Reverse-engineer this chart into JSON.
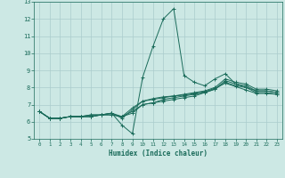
{
  "title": "",
  "xlabel": "Humidex (Indice chaleur)",
  "bg_color": "#cce8e4",
  "grid_color": "#aacccc",
  "line_color": "#1a6b5a",
  "xlim": [
    -0.5,
    23.5
  ],
  "ylim": [
    5,
    13
  ],
  "xticks": [
    0,
    1,
    2,
    3,
    4,
    5,
    6,
    7,
    8,
    9,
    10,
    11,
    12,
    13,
    14,
    15,
    16,
    17,
    18,
    19,
    20,
    21,
    22,
    23
  ],
  "yticks": [
    5,
    6,
    7,
    8,
    9,
    10,
    11,
    12,
    13
  ],
  "lines": [
    {
      "x": [
        0,
        1,
        2,
        3,
        4,
        5,
        6,
        7,
        8,
        9,
        10,
        11,
        12,
        13,
        14,
        15,
        16,
        17,
        18,
        19,
        20,
        21,
        22,
        23
      ],
      "y": [
        6.6,
        6.2,
        6.2,
        6.3,
        6.3,
        6.4,
        6.4,
        6.5,
        5.8,
        5.3,
        8.6,
        10.4,
        12.0,
        12.6,
        8.7,
        8.3,
        8.1,
        8.5,
        8.8,
        8.2,
        8.0,
        7.8,
        7.8,
        7.7
      ]
    },
    {
      "x": [
        0,
        1,
        2,
        3,
        4,
        5,
        6,
        7,
        8,
        9,
        10,
        11,
        12,
        13,
        14,
        15,
        16,
        17,
        18,
        19,
        20,
        21,
        22,
        23
      ],
      "y": [
        6.6,
        6.2,
        6.2,
        6.3,
        6.3,
        6.3,
        6.4,
        6.5,
        6.3,
        6.8,
        7.2,
        7.35,
        7.45,
        7.5,
        7.55,
        7.65,
        7.75,
        7.95,
        8.25,
        8.05,
        7.85,
        7.65,
        7.65,
        7.6
      ]
    },
    {
      "x": [
        0,
        1,
        2,
        3,
        4,
        5,
        6,
        7,
        8,
        9,
        10,
        11,
        12,
        13,
        14,
        15,
        16,
        17,
        18,
        19,
        20,
        21,
        22,
        23
      ],
      "y": [
        6.6,
        6.2,
        6.2,
        6.3,
        6.3,
        6.3,
        6.4,
        6.4,
        6.3,
        6.6,
        7.0,
        7.1,
        7.2,
        7.3,
        7.4,
        7.5,
        7.7,
        7.9,
        8.3,
        8.1,
        8.0,
        7.7,
        7.7,
        7.6
      ]
    },
    {
      "x": [
        0,
        1,
        2,
        3,
        4,
        5,
        6,
        7,
        8,
        9,
        10,
        11,
        12,
        13,
        14,
        15,
        16,
        17,
        18,
        19,
        20,
        21,
        22,
        23
      ],
      "y": [
        6.6,
        6.2,
        6.2,
        6.3,
        6.3,
        6.3,
        6.4,
        6.4,
        6.3,
        6.5,
        7.0,
        7.1,
        7.3,
        7.4,
        7.5,
        7.6,
        7.7,
        7.9,
        8.4,
        8.2,
        8.1,
        7.8,
        7.8,
        7.7
      ]
    },
    {
      "x": [
        0,
        1,
        2,
        3,
        4,
        5,
        6,
        7,
        8,
        9,
        10,
        11,
        12,
        13,
        14,
        15,
        16,
        17,
        18,
        19,
        20,
        21,
        22,
        23
      ],
      "y": [
        6.6,
        6.2,
        6.2,
        6.3,
        6.3,
        6.4,
        6.4,
        6.5,
        6.2,
        6.7,
        7.2,
        7.3,
        7.4,
        7.5,
        7.6,
        7.7,
        7.8,
        8.0,
        8.5,
        8.3,
        8.2,
        7.9,
        7.9,
        7.8
      ]
    }
  ]
}
